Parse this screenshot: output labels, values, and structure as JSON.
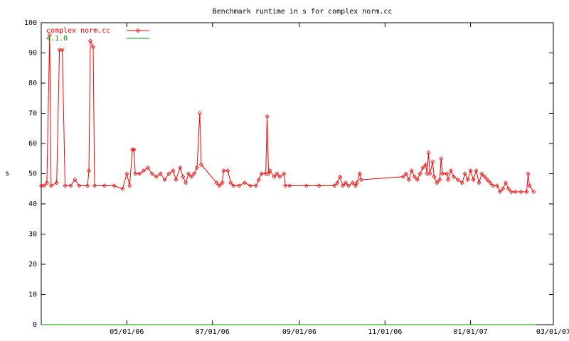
{
  "chart_data": {
    "type": "line",
    "title": "Benchmark runtime in s for complex norm.cc",
    "ylabel": "s",
    "xlim": [
      "03/01/06",
      "03/01/07"
    ],
    "xticks": [
      "05/01/06",
      "07/01/06",
      "09/01/06",
      "11/01/06",
      "01/01/07",
      "03/01/07"
    ],
    "ylim": [
      0,
      100
    ],
    "yticks": [
      0,
      10,
      20,
      30,
      40,
      50,
      60,
      70,
      80,
      90,
      100
    ],
    "legend": "top-left",
    "series": [
      {
        "name": "complex norm.cc",
        "color": "#ff0000",
        "markers": true,
        "x": [
          "03/01/06",
          "03/03/06",
          "03/05/06",
          "03/07/06",
          "03/08/06",
          "03/12/06",
          "03/14/06",
          "03/16/06",
          "03/18/06",
          "03/22/06",
          "03/25/06",
          "03/28/06",
          "04/03/06",
          "04/04/06",
          "04/05/06",
          "04/07/06",
          "04/08/06",
          "04/15/06",
          "04/22/06",
          "04/28/06",
          "05/01/06",
          "05/03/06",
          "05/05/06",
          "05/06/06",
          "05/07/06",
          "05/10/06",
          "05/13/06",
          "05/16/06",
          "05/19/06",
          "05/22/06",
          "05/25/06",
          "05/28/06",
          "05/31/06",
          "06/03/06",
          "06/05/06",
          "06/08/06",
          "06/10/06",
          "06/12/06",
          "06/14/06",
          "06/16/06",
          "06/18/06",
          "06/20/06",
          "06/22/06",
          "06/23/06",
          "07/04/06",
          "07/06/06",
          "07/08/06",
          "07/09/06",
          "07/12/06",
          "07/14/06",
          "07/16/06",
          "07/20/06",
          "07/24/06",
          "07/28/06",
          "08/01/06",
          "08/03/06",
          "08/05/06",
          "08/08/06",
          "08/09/06",
          "08/10/06",
          "08/11/06",
          "08/14/06",
          "08/16/06",
          "08/18/06",
          "08/21/06",
          "08/22/06",
          "08/25/06",
          "09/06/06",
          "09/15/06",
          "09/26/06",
          "09/28/06",
          "09/30/06",
          "10/02/06",
          "10/04/06",
          "10/06/06",
          "10/09/06",
          "10/11/06",
          "10/12/06",
          "10/14/06",
          "10/15/06",
          "11/14/06",
          "11/16/06",
          "11/18/06",
          "11/20/06",
          "11/22/06",
          "11/24/06",
          "11/26/06",
          "11/28/06",
          "11/30/06",
          "12/01/06",
          "12/02/06",
          "12/03/06",
          "12/05/06",
          "12/06/06",
          "12/08/06",
          "12/10/06",
          "12/11/06",
          "12/12/06",
          "12/15/06",
          "12/16/06",
          "12/18/06",
          "12/20/06",
          "12/23/06",
          "12/26/06",
          "12/28/06",
          "12/30/06",
          "01/01/07",
          "01/03/07",
          "01/05/07",
          "01/07/07",
          "01/09/07",
          "01/11/07",
          "01/13/07",
          "01/15/07",
          "01/17/07",
          "01/20/07",
          "01/22/07",
          "01/24/07",
          "01/26/07",
          "01/28/07",
          "01/30/07",
          "02/02/07",
          "02/06/07",
          "02/10/07",
          "02/11/07",
          "02/12/07",
          "02/15/07"
        ],
        "values": [
          46,
          46,
          47,
          96,
          46,
          47,
          91,
          91,
          46,
          46,
          48,
          46,
          46,
          51,
          94,
          92,
          46,
          46,
          46,
          45,
          50,
          46,
          58,
          58,
          50,
          50,
          51,
          52,
          50,
          49,
          50,
          48,
          50,
          51,
          48,
          52,
          49,
          47,
          50,
          49,
          50,
          52,
          70,
          53,
          47,
          46,
          47,
          51,
          51,
          47,
          46,
          46,
          47,
          46,
          46,
          48,
          50,
          50,
          69,
          50,
          51,
          49,
          50,
          49,
          50,
          46,
          46,
          46,
          46,
          46,
          47,
          49,
          46,
          47,
          46,
          47,
          46,
          47,
          50,
          48,
          49,
          50,
          48,
          51,
          49,
          48,
          50,
          52,
          53,
          50,
          57,
          50,
          54,
          49,
          47,
          48,
          55,
          50,
          50,
          48,
          51,
          49,
          48,
          47,
          50,
          48,
          51,
          48,
          51,
          47,
          50,
          49,
          48,
          47,
          46,
          46,
          44,
          45,
          47,
          45,
          44,
          44,
          44,
          44,
          50,
          46,
          44
        ]
      },
      {
        "name": "4.1.0",
        "color": "#00a000",
        "markers": false,
        "x": [
          "03/01/06",
          "02/17/07"
        ],
        "values": [
          0,
          0
        ]
      }
    ]
  }
}
